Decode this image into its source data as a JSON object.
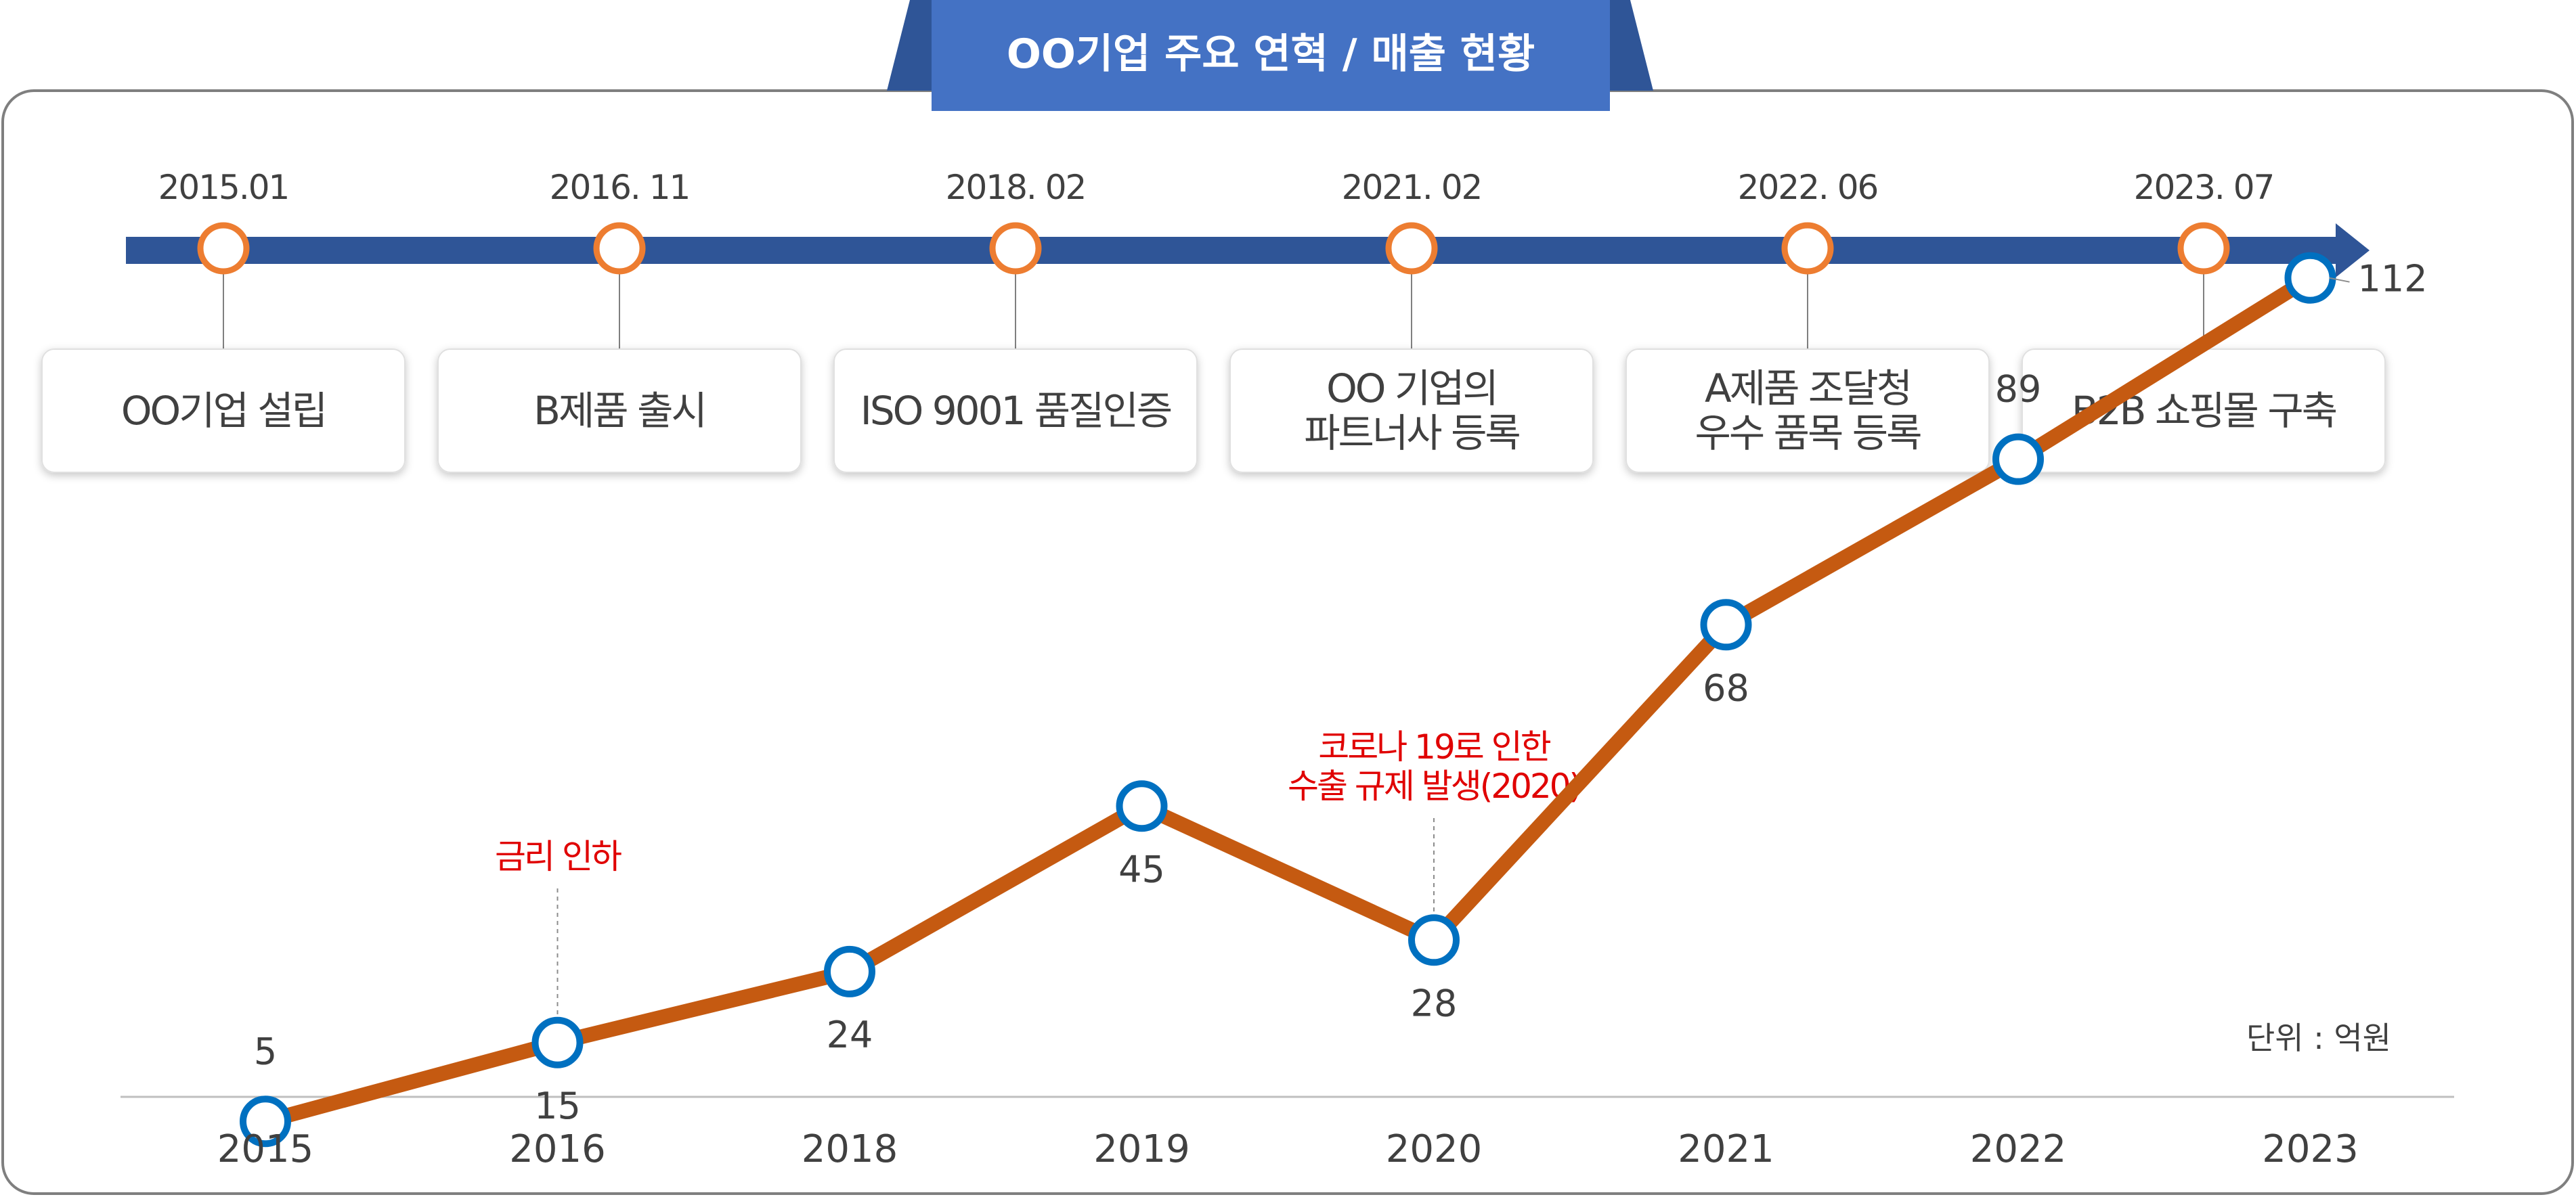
{
  "title": "OO기업 주요 연혁 / 매출 현황",
  "colors": {
    "title_bg": "#4472c4",
    "title_wing": "#2f5597",
    "timeline": "#2f5597",
    "milestone_ring": "#ed7d31",
    "sales_line": "#c55a11",
    "point_ring": "#0070c0",
    "annotation": "#e00000",
    "frame": "#7f7f7f",
    "text": "#404040"
  },
  "timeline": {
    "milestones": [
      {
        "date": "2015.01",
        "label": [
          "OO기업 설립"
        ]
      },
      {
        "date": "2016. 11",
        "label": [
          "B제품 출시"
        ]
      },
      {
        "date": "2018. 02",
        "label": [
          "ISO 9001 품질인증"
        ]
      },
      {
        "date": "2021. 02",
        "label": [
          "OO 기업의",
          "파트너사 등록"
        ]
      },
      {
        "date": "2022. 06",
        "label": [
          "A제품  조달청",
          "우수 품목 등록"
        ]
      },
      {
        "date": "2023. 07",
        "label": [
          "B2B 쇼핑몰 구축"
        ]
      }
    ]
  },
  "chart_data": {
    "type": "line",
    "title": "",
    "xlabel": "",
    "ylabel": "",
    "unit_label": "단위 : 억원",
    "categories": [
      "2015",
      "2016",
      "2018",
      "2019",
      "2020",
      "2021",
      "2022",
      "2023"
    ],
    "series": [
      {
        "values": [
          5,
          15,
          24,
          45,
          28,
          68,
          89,
          112
        ]
      }
    ],
    "ylim": [
      0,
      120
    ],
    "grid": false,
    "legend": "none",
    "value_label_side": [
      "above",
      "below",
      "below",
      "below",
      "below",
      "below",
      "above",
      "right"
    ],
    "annotations": [
      {
        "category": "2016",
        "lines": [
          "금리 인하"
        ]
      },
      {
        "category": "2020",
        "lines": [
          "코로나 19로 인한",
          "수출 규제 발생(2020)"
        ]
      }
    ]
  }
}
